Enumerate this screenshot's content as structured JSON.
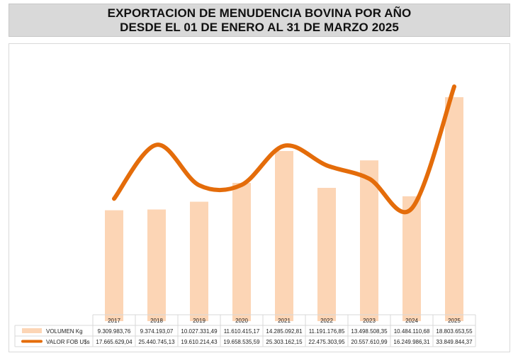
{
  "title_line1": "EXPORTACION DE MENUDENCIA BOVINA POR AÑO",
  "title_line2": "DESDE EL 01 DE ENERO AL 31 DE MARZO 2025",
  "colors": {
    "bar": "#fcd5b5",
    "line": "#e46c0a",
    "title_bg": "#d9d9d9",
    "grid": "#d9d9d9"
  },
  "chart_data": {
    "type": "bar",
    "categories": [
      "2017",
      "2018",
      "2019",
      "2020",
      "2021",
      "2022",
      "2023",
      "2024",
      "2025"
    ],
    "series": [
      {
        "name": "VOLUMEN Kg",
        "type": "bar",
        "values": [
          9309983.76,
          9374193.07,
          10027331.49,
          11610415.17,
          14285092.81,
          11191176.85,
          13498508.35,
          10484110.68,
          18803653.55
        ],
        "labels": [
          "9.309.983,76",
          "9.374.193,07",
          "10.027.331,49",
          "11.610.415,17",
          "14.285.092,81",
          "11.191.176,85",
          "13.498.508,35",
          "10.484.110,68",
          "18.803.653,55"
        ]
      },
      {
        "name": "VALOR FOB U$s",
        "type": "line",
        "smooth": true,
        "values": [
          17665629.04,
          25440745.13,
          19610214.43,
          19658535.59,
          25303162.15,
          22475303.95,
          20557610.99,
          16249986.31,
          33849844.37
        ],
        "labels": [
          "17.665.629,04",
          "25.440.745,13",
          "19.610.214,43",
          "19.658.535,59",
          "25.303.162,15",
          "22.475.303,95",
          "20.557.610,99",
          "16.249.986,31",
          "33.849.844,37"
        ]
      }
    ],
    "ylim_bar": [
      0,
      20000000
    ],
    "ylim_line": [
      0,
      40000000
    ],
    "grid": false,
    "legend": "data-table"
  }
}
